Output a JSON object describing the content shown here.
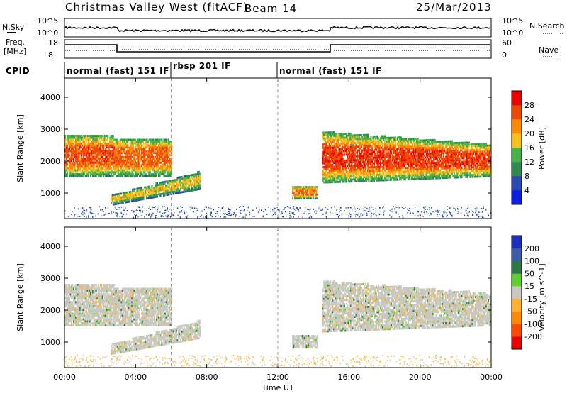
{
  "header": {
    "title": "Christmas Valley West (fitACF)",
    "beam": "Beam 14",
    "date": "25/Mar/2013"
  },
  "nsky_panel": {
    "left_label": "N.Sky",
    "left_ticks": [
      "10^5",
      "10^0"
    ],
    "right_label": "N.Search",
    "right_ticks": [
      "10^5",
      "10^0"
    ]
  },
  "freq_panel": {
    "left_label_1": "Freq.",
    "left_label_2": "[MHz]",
    "left_ticks": [
      "18",
      "8"
    ],
    "right_label": "Nave",
    "right_ticks": [
      "60",
      "0"
    ]
  },
  "cpid": {
    "label": "CPID",
    "modes": [
      {
        "text": "normal (fast) 151 IF",
        "start_hour": 0
      },
      {
        "text": "rbsp 201 IF",
        "start_hour": 6
      },
      {
        "text": "normal (fast) 151 IF",
        "start_hour": 12
      }
    ]
  },
  "x_axis": {
    "label": "Time UT",
    "ticks": [
      "00:00",
      "04:00",
      "08:00",
      "12:00",
      "16:00",
      "20:00",
      "00:00"
    ]
  },
  "power_panel": {
    "ylabel": "Slant Range [km]",
    "yticks": [
      "1000",
      "2000",
      "3000",
      "4000"
    ],
    "colorbar_label": "Power [dB]",
    "colorbar_ticks": [
      "4",
      "8",
      "12",
      "16",
      "20",
      "24",
      "28"
    ],
    "colors": [
      "#0a1ee6",
      "#2d49b4",
      "#2e8a4e",
      "#45b34a",
      "#f2c21a",
      "#ff8a00",
      "#f04a00",
      "#ee0000"
    ]
  },
  "velocity_panel": {
    "ylabel": "Slant Range [km]",
    "yticks": [
      "1000",
      "2000",
      "3000",
      "4000"
    ],
    "colorbar_label": "Velocity [m s^-1]",
    "colorbar_ticks": [
      "200",
      "100",
      "50",
      "15",
      "-15",
      "-50",
      "-100",
      "-200"
    ],
    "colors": [
      "#1f2fc0",
      "#3c5da8",
      "#2f7a44",
      "#5ecf2e",
      "#c8c8c0",
      "#ffb030",
      "#ff8a00",
      "#ff4a00",
      "#ee0000"
    ]
  },
  "chart_data": {
    "type": "heatmap",
    "title": "Christmas Valley West (fitACF)",
    "xlabel": "Time UT",
    "ylabel": "Slant Range [km]",
    "xlim_hours": [
      0,
      24
    ],
    "ylim_km": [
      200,
      4600
    ],
    "power_scale_db": [
      0,
      30
    ],
    "velocity_scale": [
      -200,
      200
    ],
    "power_regions": [
      {
        "name": "early-band",
        "t0": 0.0,
        "t1": 2.8,
        "r0": 1500,
        "r1": 2800,
        "db": 26
      },
      {
        "name": "early-band-2",
        "t0": 2.8,
        "t1": 6.0,
        "r0": 1500,
        "r1": 2700,
        "db": 25
      },
      {
        "name": "sloped-band",
        "t0": 2.6,
        "t1": 7.6,
        "r0": 600,
        "r1": 1650,
        "db": 18
      },
      {
        "name": "midday-bits",
        "t0": 12.8,
        "t1": 14.2,
        "r0": 800,
        "r1": 1200,
        "db": 24
      },
      {
        "name": "afternoon-band",
        "t0": 14.5,
        "t1": 24.0,
        "r0": 1300,
        "r1": 2900,
        "db": 27
      }
    ]
  }
}
